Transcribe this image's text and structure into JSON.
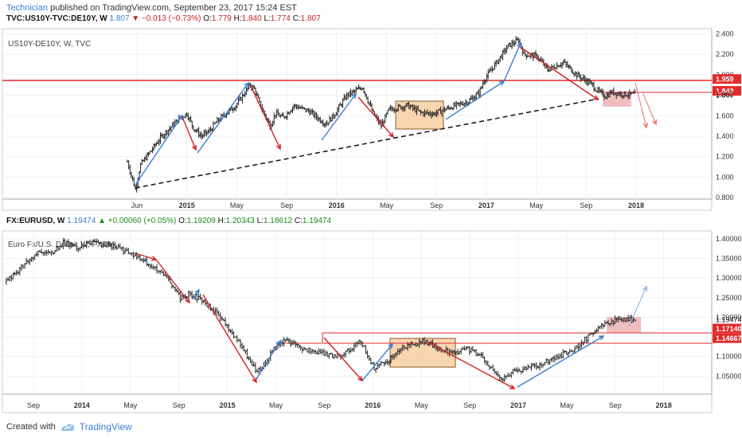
{
  "header": {
    "author": "Technician",
    "published": "published on TradingView.com, September 23, 2017 15:24 EST"
  },
  "footer": {
    "created": "Created with",
    "brand": "TradingView"
  },
  "chart_data": [
    {
      "type": "line",
      "symbol_line": {
        "symbol": "TVC:US10Y-TVC:DE10Y, W",
        "last": "1.807",
        "change": "▼ −0.013 (−0.73%)",
        "o_label": "O:",
        "o": "1.779",
        "h_label": "H:",
        "h": "1.840",
        "l_label": "L:",
        "l": "1.774",
        "c_label": "C:",
        "c": "1.807"
      },
      "title": "US10Y-DE10Y, W, TVC",
      "y_ticks": [
        "2.400",
        "2.200",
        "2.000",
        "1.800",
        "1.600",
        "1.400",
        "1.200",
        "1.000",
        "0.800"
      ],
      "ylim": [
        0.8,
        2.42
      ],
      "x_ticks": [
        "Jun",
        "2015",
        "May",
        "Sep",
        "2016",
        "May",
        "Sep",
        "2017",
        "May",
        "Sep",
        "2018"
      ],
      "x_tick_bold": [
        "2015",
        "2016",
        "2017",
        "2018"
      ],
      "price_labels": [
        {
          "text": "1.959",
          "value": 1.959,
          "color": "#e32a2a"
        },
        {
          "text": "1.843",
          "value": 1.843,
          "color": "#e32a2a"
        }
      ],
      "last_label": {
        "text": "1.807",
        "value": 1.807
      },
      "resistance": 1.959,
      "bars_per_tick": 17,
      "path": [
        [
          0,
          1.15
        ],
        [
          6,
          0.88
        ],
        [
          10,
          1.12
        ],
        [
          26,
          1.4
        ],
        [
          40,
          1.58
        ],
        [
          45,
          1.62
        ],
        [
          50,
          1.48
        ],
        [
          56,
          1.4
        ],
        [
          62,
          1.45
        ],
        [
          68,
          1.55
        ],
        [
          82,
          1.7
        ],
        [
          93,
          1.9
        ],
        [
          96,
          1.86
        ],
        [
          100,
          1.72
        ],
        [
          108,
          1.5
        ],
        [
          112,
          1.62
        ],
        [
          118,
          1.58
        ],
        [
          126,
          1.7
        ],
        [
          138,
          1.64
        ],
        [
          150,
          1.52
        ],
        [
          156,
          1.6
        ],
        [
          166,
          1.8
        ],
        [
          178,
          1.88
        ],
        [
          186,
          1.62
        ],
        [
          192,
          1.5
        ],
        [
          198,
          1.66
        ],
        [
          212,
          1.7
        ],
        [
          222,
          1.63
        ],
        [
          232,
          1.62
        ],
        [
          244,
          1.68
        ],
        [
          258,
          1.74
        ],
        [
          266,
          1.82
        ],
        [
          270,
          1.95
        ],
        [
          288,
          2.28
        ],
        [
          296,
          2.34
        ],
        [
          300,
          2.2
        ],
        [
          310,
          2.18
        ],
        [
          318,
          2.05
        ],
        [
          330,
          2.12
        ],
        [
          340,
          2.0
        ],
        [
          350,
          1.92
        ],
        [
          356,
          1.84
        ],
        [
          362,
          1.79
        ],
        [
          366,
          1.83
        ],
        [
          376,
          1.81
        ],
        [
          384,
          1.807
        ]
      ]
    },
    {
      "type": "line",
      "symbol_line": {
        "symbol": "FX:EURUSD, W",
        "last": "1.19474",
        "change": "▲ +0.00060 (+0.05%)",
        "o_label": "O:",
        "o": "1.19209",
        "h_label": "H:",
        "h": "1.20343",
        "l_label": "L:",
        "l": "1.18612",
        "c_label": "C:",
        "c": "1.19474"
      },
      "title": "Euro Fx/U.S. Dollar, W, FXCM",
      "y_ticks": [
        "1.40000",
        "1.35000",
        "1.30000",
        "1.25000",
        "1.20000",
        "1.15000",
        "1.10000",
        "1.05000"
      ],
      "ylim": [
        1.01,
        1.41
      ],
      "x_ticks": [
        "Sep",
        "2014",
        "May",
        "Sep",
        "2015",
        "May",
        "Sep",
        "2016",
        "May",
        "Sep",
        "2017",
        "May",
        "Sep",
        "2018"
      ],
      "x_tick_bold": [
        "2014",
        "2015",
        "2016",
        "2017",
        "2018"
      ],
      "price_labels": [
        {
          "text": "1.17140",
          "value": 1.1714,
          "color": "#e32a2a"
        },
        {
          "text": "1.14667",
          "value": 1.14667,
          "color": "#e32a2a"
        }
      ],
      "last_label": {
        "text": "1.19474",
        "value": 1.19474
      },
      "bars_per_tick": 17,
      "path": [
        [
          0,
          1.29
        ],
        [
          10,
          1.33
        ],
        [
          20,
          1.37
        ],
        [
          26,
          1.36
        ],
        [
          34,
          1.39
        ],
        [
          42,
          1.38
        ],
        [
          52,
          1.39
        ],
        [
          62,
          1.385
        ],
        [
          70,
          1.37
        ],
        [
          84,
          1.34
        ],
        [
          96,
          1.3
        ],
        [
          104,
          1.25
        ],
        [
          110,
          1.26
        ],
        [
          118,
          1.24
        ],
        [
          128,
          1.2
        ],
        [
          140,
          1.13
        ],
        [
          150,
          1.06
        ],
        [
          154,
          1.08
        ],
        [
          162,
          1.13
        ],
        [
          168,
          1.14
        ],
        [
          176,
          1.12
        ],
        [
          188,
          1.11
        ],
        [
          198,
          1.1
        ],
        [
          206,
          1.12
        ],
        [
          212,
          1.14
        ],
        [
          220,
          1.07
        ],
        [
          228,
          1.09
        ],
        [
          236,
          1.12
        ],
        [
          242,
          1.13
        ],
        [
          250,
          1.14
        ],
        [
          258,
          1.12
        ],
        [
          266,
          1.11
        ],
        [
          276,
          1.12
        ],
        [
          284,
          1.1
        ],
        [
          292,
          1.06
        ],
        [
          296,
          1.04
        ],
        [
          302,
          1.06
        ],
        [
          312,
          1.07
        ],
        [
          320,
          1.08
        ],
        [
          330,
          1.1
        ],
        [
          340,
          1.12
        ],
        [
          348,
          1.15
        ],
        [
          356,
          1.18
        ],
        [
          362,
          1.19
        ],
        [
          370,
          1.195
        ],
        [
          376,
          1.19474
        ]
      ]
    }
  ]
}
